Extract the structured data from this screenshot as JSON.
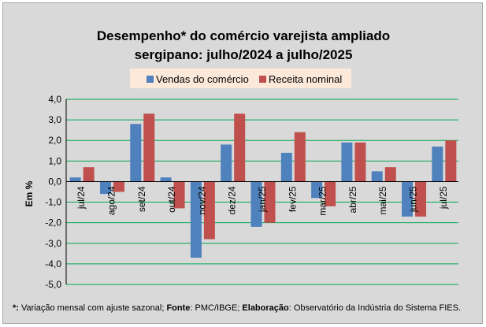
{
  "chart_data": {
    "type": "bar",
    "title": [
      "Desempenho* do comércio varejista ampliado",
      "sergipano: julho/2024 a julho/2025"
    ],
    "xlabel": "",
    "ylabel": "Em %",
    "ylim": [
      -5,
      4
    ],
    "ytick_step": 1,
    "ytick_labels": [
      "4,0",
      "3,0",
      "2,0",
      "1,0",
      "0,0",
      "-1,0",
      "-2,0",
      "-3,0",
      "-4,0",
      "-5,0"
    ],
    "grid": true,
    "legend_position": "top-center",
    "categories": [
      "jul/24",
      "ago/24",
      "set/24",
      "out/24",
      "nov/24",
      "dez/24",
      "jan/25",
      "fev/25",
      "mar/25",
      "abr/25",
      "mai/25",
      "jun/25",
      "jul/25"
    ],
    "series": [
      {
        "name": "Vendas do comércio",
        "color": "#4f81bd",
        "values": [
          0.2,
          -0.6,
          2.8,
          0.2,
          -3.7,
          1.8,
          -2.2,
          1.4,
          -0.8,
          1.9,
          0.5,
          -1.7,
          1.7
        ]
      },
      {
        "name": "Receita nominal",
        "color": "#c0504d",
        "values": [
          0.7,
          -0.5,
          3.3,
          -1.3,
          -2.8,
          3.3,
          -2.0,
          2.4,
          -1.2,
          1.9,
          0.7,
          -1.7,
          2.0
        ]
      }
    ]
  },
  "footnote": {
    "star_label": "*:",
    "star_text": " Variação mensal com ajuste sazonal; ",
    "source_label": "Fonte",
    "source_text": ": PMC/IBGE; ",
    "prep_label": "Elaboração",
    "prep_text": ": Observatório da Indústria do Sistema FIES."
  },
  "colors": {
    "background": "#d9d9d9",
    "gridline": "#00a651",
    "legend_bg": "#fde9d9"
  }
}
